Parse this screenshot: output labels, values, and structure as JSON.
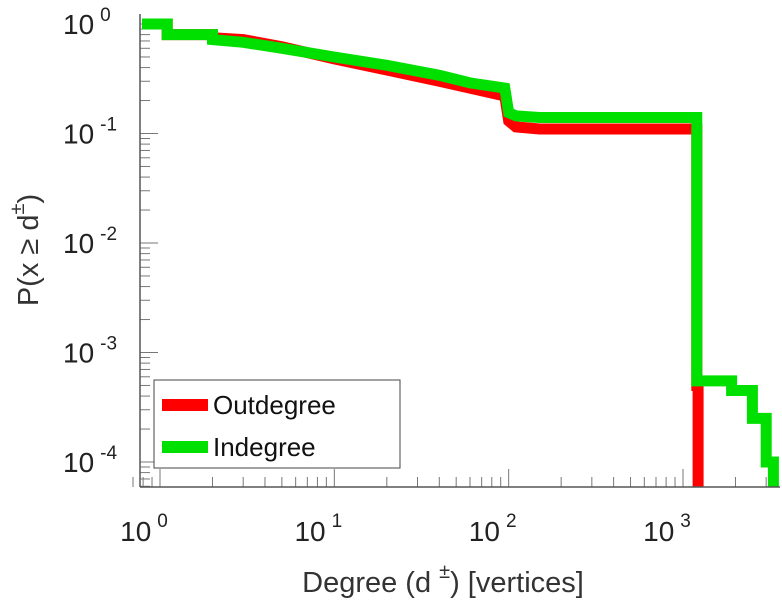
{
  "chart_data": {
    "type": "line",
    "step": true,
    "log_x": true,
    "log_y": true,
    "xlim": [
      0.7,
      6000
    ],
    "ylim": [
      5.5e-05,
      1.4
    ],
    "grid": false,
    "legend_position": "bottom-left",
    "xlabel": {
      "prefix": "Degree (d",
      "superscript": "±",
      "suffix": ") [vertices]"
    },
    "ylabel": {
      "prefix": "P(x ≥ d",
      "superscript": "±",
      "suffix": ")"
    },
    "x_ticks": [
      {
        "base": "10",
        "exp": "0",
        "value": 1
      },
      {
        "base": "10",
        "exp": "1",
        "value": 10
      },
      {
        "base": "10",
        "exp": "2",
        "value": 100
      },
      {
        "base": "10",
        "exp": "3",
        "value": 1000
      }
    ],
    "y_ticks": [
      {
        "base": "10",
        "exp": "0",
        "value": 1
      },
      {
        "base": "10",
        "exp": "-1",
        "value": 0.1
      },
      {
        "base": "10",
        "exp": "-2",
        "value": 0.01
      },
      {
        "base": "10",
        "exp": "-3",
        "value": 0.001
      },
      {
        "base": "10",
        "exp": "-4",
        "value": 0.0001
      }
    ],
    "series": [
      {
        "name": "Outdegree",
        "color": "#ff0000",
        "points": [
          [
            0.7,
            1.0
          ],
          [
            1.1,
            1.0
          ],
          [
            1.1,
            0.8
          ],
          [
            2.0,
            0.8
          ],
          [
            2.0,
            0.75
          ],
          [
            3.0,
            0.72
          ],
          [
            5.0,
            0.62
          ],
          [
            10,
            0.48
          ],
          [
            20,
            0.38
          ],
          [
            40,
            0.3
          ],
          [
            60,
            0.26
          ],
          [
            95,
            0.22
          ],
          [
            100,
            0.13
          ],
          [
            110,
            0.115
          ],
          [
            150,
            0.11
          ],
          [
            1200,
            0.11
          ],
          [
            1200,
            0.0005
          ],
          [
            1220,
            0.0005
          ],
          [
            1220,
            5.5e-05
          ]
        ]
      },
      {
        "name": "Indegree",
        "color": "#00e000",
        "points": [
          [
            0.7,
            1.0
          ],
          [
            1.1,
            1.0
          ],
          [
            1.1,
            0.8
          ],
          [
            2.0,
            0.8
          ],
          [
            2.0,
            0.72
          ],
          [
            3.0,
            0.68
          ],
          [
            5.0,
            0.6
          ],
          [
            10,
            0.5
          ],
          [
            20,
            0.42
          ],
          [
            40,
            0.34
          ],
          [
            60,
            0.29
          ],
          [
            95,
            0.26
          ],
          [
            100,
            0.155
          ],
          [
            110,
            0.145
          ],
          [
            150,
            0.14
          ],
          [
            1200,
            0.14
          ],
          [
            1200,
            0.00055
          ],
          [
            1900,
            0.00055
          ],
          [
            1900,
            0.00045
          ],
          [
            2500,
            0.00045
          ],
          [
            2500,
            0.00025
          ],
          [
            3000,
            0.00025
          ],
          [
            3000,
            0.0001
          ],
          [
            3300,
            0.0001
          ],
          [
            3300,
            5.5e-05
          ]
        ]
      }
    ]
  }
}
